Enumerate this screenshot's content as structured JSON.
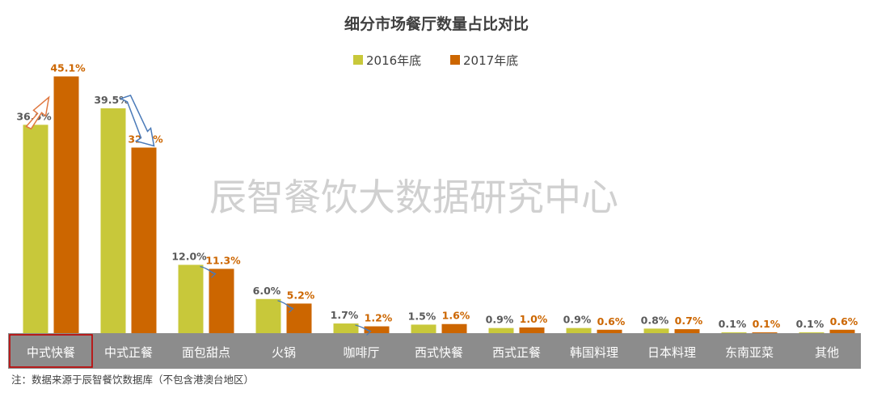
{
  "chart_data": {
    "type": "bar",
    "title": "细分市场餐厅数量占比对比",
    "categories": [
      "中式快餐",
      "中式正餐",
      "面包甜点",
      "火锅",
      "咖啡厅",
      "西式快餐",
      "西式正餐",
      "韩国料理",
      "日本料理",
      "东南亚菜",
      "其他"
    ],
    "series": [
      {
        "name": "2016年底",
        "values": [
          36.6,
          39.5,
          12.0,
          6.0,
          1.7,
          1.5,
          0.9,
          0.9,
          0.8,
          0.1,
          0.1
        ],
        "labels": [
          "36.6%",
          "39.5%",
          "12.0%",
          "6.0%",
          "1.7%",
          "1.5%",
          "0.9%",
          "0.9%",
          "0.8%",
          "0.1%",
          "0.1%"
        ]
      },
      {
        "name": "2017年底",
        "values": [
          45.1,
          32.6,
          11.3,
          5.2,
          1.2,
          1.6,
          1.0,
          0.6,
          0.7,
          0.1,
          0.6
        ],
        "labels": [
          "45.1%",
          "32.6%",
          "11.3%",
          "5.2%",
          "1.2%",
          "1.6%",
          "1.0%",
          "0.6%",
          "0.7%",
          "0.1%",
          "0.6%"
        ]
      }
    ],
    "ylim": [
      0,
      50
    ],
    "legend_position": "top-center",
    "grid": false,
    "highlighted_category": "中式快餐",
    "annotations": {
      "arrow_up": [
        "中式快餐"
      ],
      "arrow_down": [
        "中式正餐",
        "面包甜点",
        "火锅",
        "咖啡厅"
      ]
    }
  },
  "colors": {
    "series_2016": "#c8c83a",
    "series_2017": "#cc6600",
    "label_2016": "#5a5a5a",
    "label_2017": "#cc6600",
    "axis_band": "#8c8c8c",
    "highlight_border": "#c00000",
    "arrow_up": "#e07840",
    "arrow_down": "#4a7ab8"
  },
  "watermark": "辰智餐饮大数据研究中心",
  "footnote": "注：数据来源于辰智餐饮数据库（不包含港澳台地区）"
}
